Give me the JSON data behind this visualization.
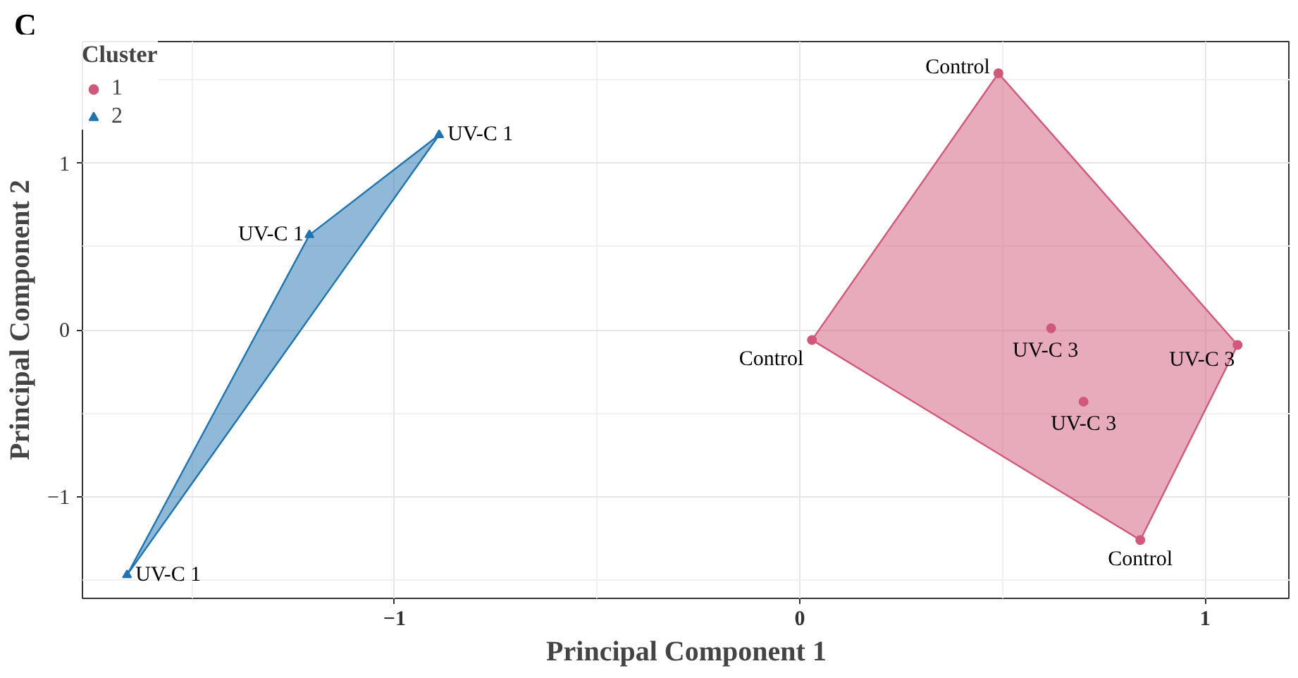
{
  "chart_data": {
    "type": "scatter",
    "xlabel": "Principal Component 1",
    "ylabel": "Principal Component 2",
    "legend_title": "Cluster",
    "xlim": [
      -1.77,
      1.21
    ],
    "ylim": [
      -1.61,
      1.73
    ],
    "xticks": [
      -1,
      0,
      1
    ],
    "yticks": [
      -1,
      0,
      1
    ],
    "grid": true,
    "legend": "top left",
    "series": [
      {
        "type": "area",
        "color": "#d0587a",
        "x": [
          0.49,
          1.08,
          0.84,
          0.03
        ],
        "values": [
          1.54,
          -0.09,
          -1.26,
          -0.06
        ]
      },
      {
        "type": "area",
        "color": "#1f74b0",
        "x": [
          -0.89,
          -1.66,
          -1.21
        ],
        "values": [
          1.17,
          -1.47,
          0.57
        ]
      },
      {
        "name": "1",
        "color": "#d0587a",
        "marker": "circle",
        "x": [
          0.49,
          0.03,
          0.62,
          1.08,
          0.7,
          0.84
        ],
        "values": [
          1.54,
          -0.06,
          0.01,
          -0.09,
          -0.43,
          -1.26
        ]
      },
      {
        "name": "2",
        "color": "#1f74b0",
        "marker": "triangle",
        "x": [
          -0.89,
          -1.21,
          -1.66
        ],
        "values": [
          1.17,
          0.57,
          -1.47
        ]
      }
    ],
    "annotations": [
      "C",
      {
        "text": "Control",
        "x": 0.49,
        "y": 1.54
      },
      {
        "text": "Control",
        "x": 0.03,
        "y": -0.06
      },
      {
        "text": "UV-C 3",
        "x": 0.62,
        "y": 0.01
      },
      {
        "text": "UV-C 3",
        "x": 1.08,
        "y": -0.09
      },
      {
        "text": "UV-C 3",
        "x": 0.7,
        "y": -0.43
      },
      {
        "text": "Control",
        "x": 0.84,
        "y": -1.26
      },
      {
        "text": "UV-C 1",
        "x": -0.89,
        "y": 1.17
      },
      {
        "text": "UV-C 1",
        "x": -1.21,
        "y": 0.57
      },
      {
        "text": "UV-C 1",
        "x": -1.66,
        "y": -1.47
      }
    ]
  }
}
